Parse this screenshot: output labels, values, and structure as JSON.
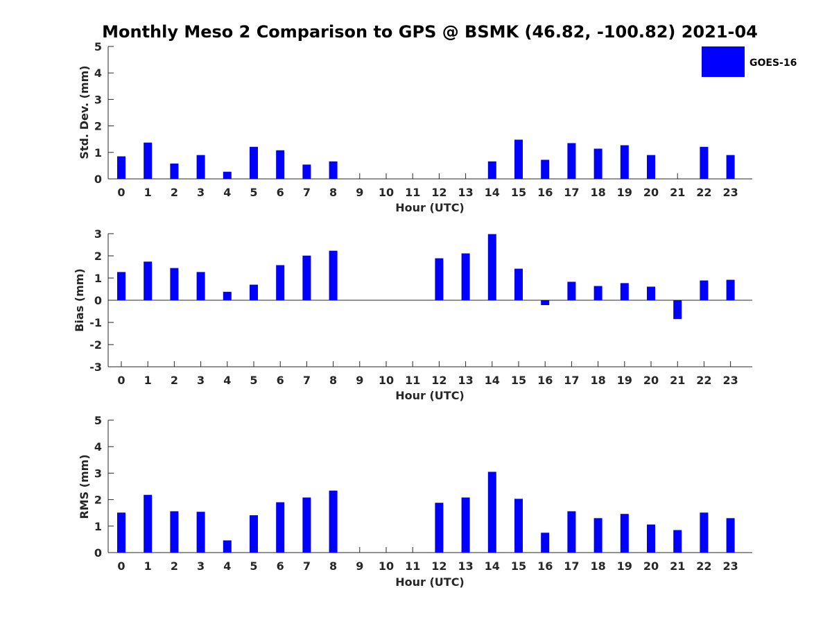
{
  "title": "Monthly Meso 2 Comparison to GPS @ BSMK (46.82, -100.82) 2021-04",
  "legend": {
    "label": "GOES-16",
    "color": "#0000ff",
    "placement": "top-right"
  },
  "chart_data": [
    {
      "type": "bar",
      "title": "Monthly Meso 2 Comparison to GPS @ BSMK (46.82, -100.82) 2021-04",
      "xlabel": "Hour (UTC)",
      "ylabel": "Std. Dev. (mm)",
      "ylim": [
        0,
        5
      ],
      "yticks": [
        "0",
        "1",
        "2",
        "3",
        "4",
        "5"
      ],
      "categories": [
        "0",
        "1",
        "2",
        "3",
        "4",
        "5",
        "6",
        "7",
        "8",
        "9",
        "10",
        "11",
        "12",
        "13",
        "14",
        "15",
        "16",
        "17",
        "18",
        "19",
        "20",
        "21",
        "22",
        "23"
      ],
      "series": [
        {
          "name": "GOES-16",
          "color": "#0000ff",
          "values": [
            0.85,
            1.37,
            0.58,
            0.9,
            0.27,
            1.21,
            1.08,
            0.54,
            0.66,
            null,
            null,
            null,
            null,
            null,
            0.66,
            1.48,
            0.72,
            1.35,
            1.14,
            1.27,
            0.9,
            null,
            1.21,
            0.9
          ]
        }
      ]
    },
    {
      "type": "bar",
      "xlabel": "Hour (UTC)",
      "ylabel": "Bias (mm)",
      "ylim": [
        -3,
        3
      ],
      "yticks": [
        "-3",
        "-2",
        "-1",
        "0",
        "1",
        "2",
        "3"
      ],
      "categories": [
        "0",
        "1",
        "2",
        "3",
        "4",
        "5",
        "6",
        "7",
        "8",
        "9",
        "10",
        "11",
        "12",
        "13",
        "14",
        "15",
        "16",
        "17",
        "18",
        "19",
        "20",
        "21",
        "22",
        "23"
      ],
      "series": [
        {
          "name": "GOES-16",
          "color": "#0000ff",
          "values": [
            1.27,
            1.74,
            1.45,
            1.27,
            0.38,
            0.7,
            1.58,
            2.01,
            2.23,
            null,
            null,
            null,
            1.89,
            2.11,
            2.98,
            1.42,
            -0.22,
            0.83,
            0.64,
            0.77,
            0.61,
            -0.85,
            0.89,
            0.92
          ]
        }
      ]
    },
    {
      "type": "bar",
      "xlabel": "Hour (UTC)",
      "ylabel": "RMS (mm)",
      "ylim": [
        0,
        5
      ],
      "yticks": [
        "0",
        "1",
        "2",
        "3",
        "4",
        "5"
      ],
      "categories": [
        "0",
        "1",
        "2",
        "3",
        "4",
        "5",
        "6",
        "7",
        "8",
        "9",
        "10",
        "11",
        "12",
        "13",
        "14",
        "15",
        "16",
        "17",
        "18",
        "19",
        "20",
        "21",
        "22",
        "23"
      ],
      "series": [
        {
          "name": "GOES-16",
          "color": "#0000ff",
          "values": [
            1.51,
            2.18,
            1.56,
            1.54,
            0.46,
            1.41,
            1.9,
            2.08,
            2.34,
            null,
            null,
            null,
            1.88,
            2.08,
            3.05,
            2.03,
            0.75,
            1.56,
            1.3,
            1.46,
            1.06,
            0.85,
            1.51,
            1.3
          ]
        }
      ]
    }
  ]
}
